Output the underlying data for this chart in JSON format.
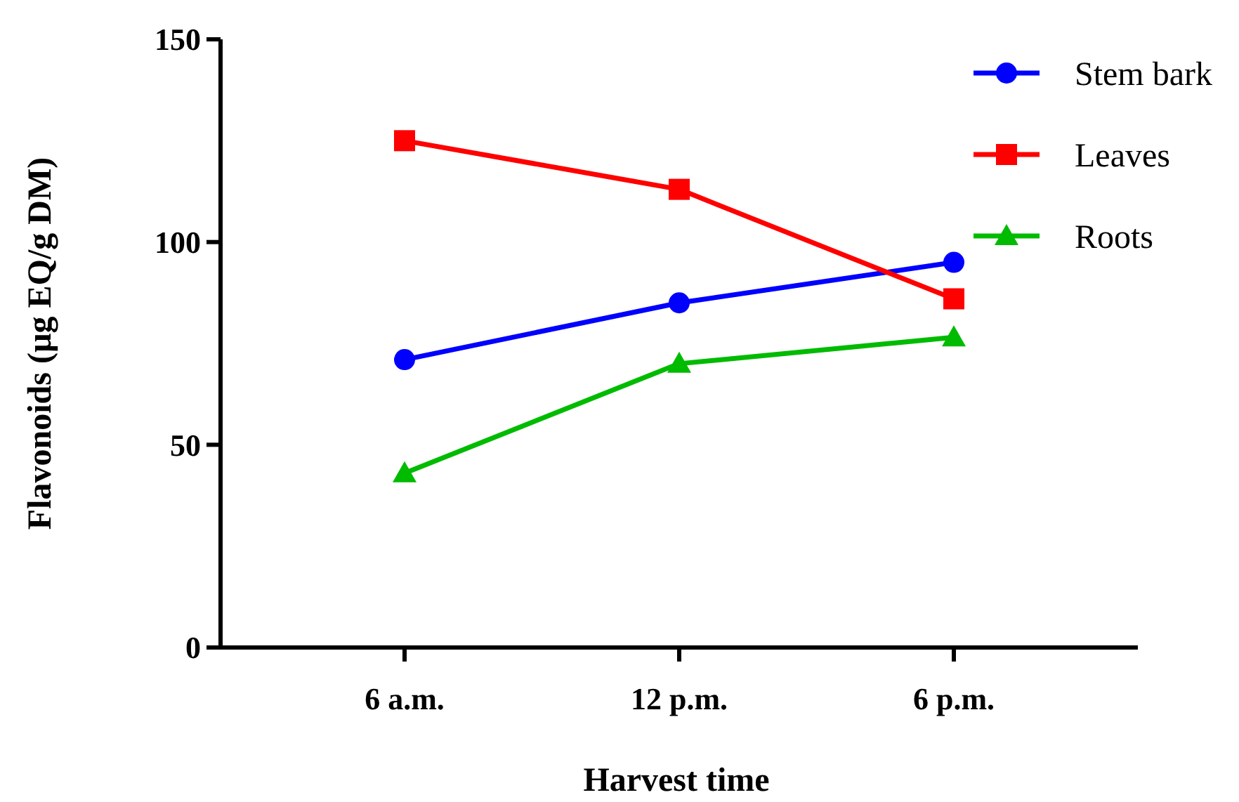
{
  "chart_data": {
    "type": "line",
    "xlabel": "Harvest time",
    "ylabel": "Flavonoids (µg EQ/g DM)",
    "categories": [
      "6 a.m.",
      "12 p.m.",
      "6 p.m."
    ],
    "ylim": [
      0,
      150
    ],
    "yticks": [
      0,
      50,
      100,
      150
    ],
    "legend": "top right",
    "series": [
      {
        "name": "Stem bark",
        "color": "#0000ff",
        "marker": "circle",
        "values": [
          71,
          85,
          95
        ]
      },
      {
        "name": "Leaves",
        "color": "#ff0000",
        "marker": "square",
        "values": [
          125,
          113,
          86
        ]
      },
      {
        "name": "Roots",
        "color": "#00bb00",
        "marker": "triangle",
        "values": [
          43,
          70,
          76.5
        ]
      }
    ]
  }
}
